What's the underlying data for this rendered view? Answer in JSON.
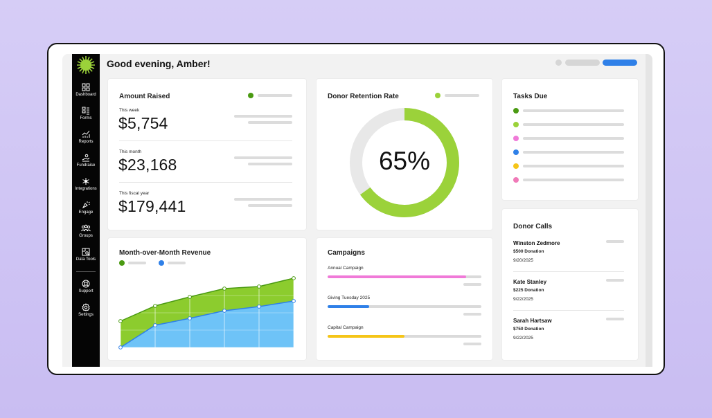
{
  "header": {
    "greeting": "Good evening, Amber!"
  },
  "sidebar": {
    "items": [
      {
        "label": "Dashboard",
        "icon": "dashboard-icon"
      },
      {
        "label": "Forms",
        "icon": "forms-icon"
      },
      {
        "label": "Reports",
        "icon": "reports-icon"
      },
      {
        "label": "Fundraise",
        "icon": "fundraise-icon"
      },
      {
        "label": "Integrations",
        "icon": "integrations-icon"
      },
      {
        "label": "Engage",
        "icon": "engage-icon"
      },
      {
        "label": "Groups",
        "icon": "groups-icon"
      },
      {
        "label": "Data Tools",
        "icon": "data-tools-icon"
      },
      {
        "label": "Support",
        "icon": "support-icon"
      },
      {
        "label": "Settings",
        "icon": "settings-icon"
      }
    ]
  },
  "amount_raised": {
    "title": "Amount Raised",
    "periods": [
      {
        "label": "This week",
        "value": "$5,754"
      },
      {
        "label": "This month",
        "value": "$23,168"
      },
      {
        "label": "This fiscal year",
        "value": "$179,441"
      }
    ]
  },
  "retention": {
    "title": "Donor Retention Rate",
    "value": "65%",
    "fraction": 0.65
  },
  "tasks": {
    "title": "Tasks Due",
    "colors": [
      "#4a9a12",
      "#9bd23a",
      "#f07ad8",
      "#2f80e8",
      "#f5c518",
      "#f07ab8"
    ]
  },
  "revenue": {
    "title": "Month-over-Month Revenue"
  },
  "campaigns": {
    "title": "Campaigns",
    "items": [
      {
        "label": "Annual Campaign",
        "progress": 0.9,
        "color": "#f07ad8"
      },
      {
        "label": "Giving Tuesday 2025",
        "progress": 0.27,
        "color": "#2f80e8"
      },
      {
        "label": "Capital Campaign",
        "progress": 0.5,
        "color": "#f5c518"
      }
    ]
  },
  "donor_calls": {
    "title": "Donor Calls",
    "items": [
      {
        "name": "Winston Zedmore",
        "amount": "$500 Donation",
        "date": "9/20/2025"
      },
      {
        "name": "Kate Stanley",
        "amount": "$225 Donation",
        "date": "9/22/2025"
      },
      {
        "name": "Sarah Hartsaw",
        "amount": "$750 Donation",
        "date": "9/22/2025"
      }
    ]
  },
  "colors": {
    "accent_green": "#9bd23a",
    "dark_green": "#4a9a12",
    "blue": "#2f80e8",
    "light_blue": "#6ec3f7"
  }
}
